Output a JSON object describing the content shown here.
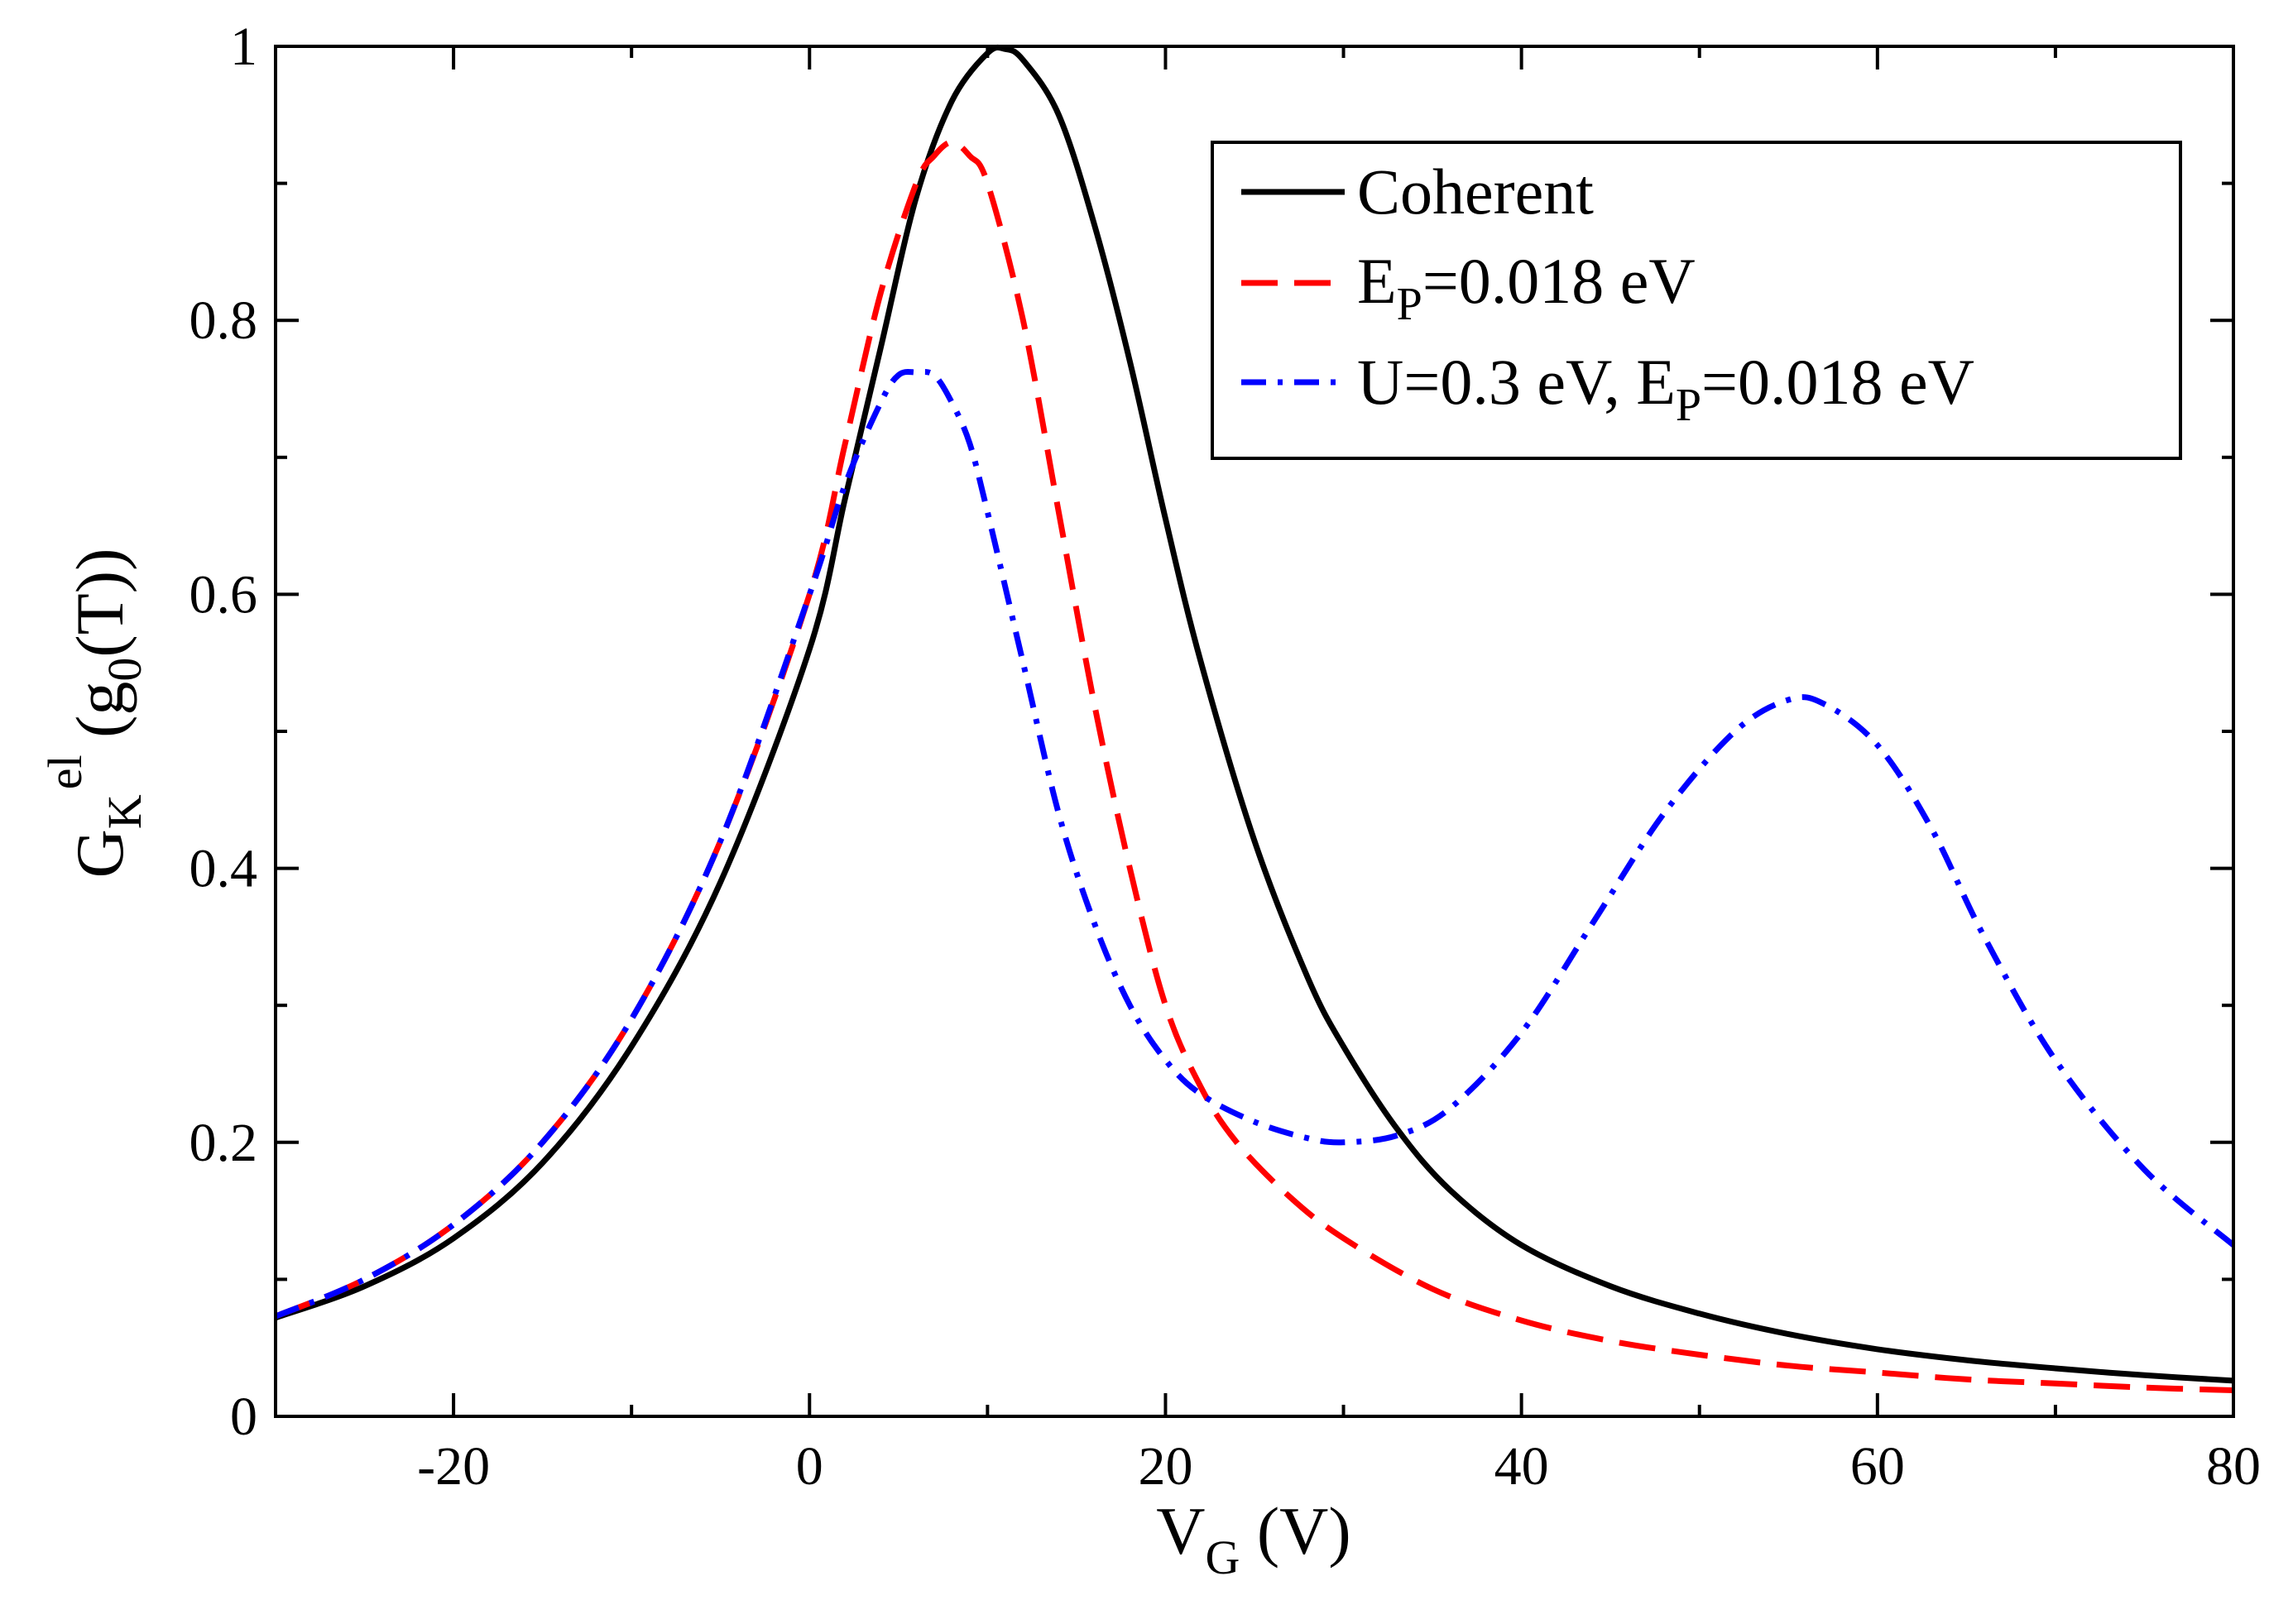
{
  "chart_data": {
    "type": "line",
    "xlabel": {
      "main": "V",
      "sub": "G",
      "rest": " (V)"
    },
    "ylabel": {
      "main": "G",
      "sub": "K",
      "sup": "el",
      "rest1": " (g",
      "sub2": "0",
      "rest2": "(T))"
    },
    "xlim": [
      -30,
      80
    ],
    "ylim": [
      0,
      1
    ],
    "xticks": [
      -20,
      0,
      20,
      40,
      60,
      80
    ],
    "xtick_labels": [
      "-20",
      "0",
      "20",
      "40",
      "60",
      "80"
    ],
    "yticks": [
      0,
      0.2,
      0.4,
      0.6,
      0.8,
      1
    ],
    "ytick_labels": [
      "0",
      "0.2",
      "0.4",
      "0.6",
      "0.8",
      "1"
    ],
    "legend_position": "top-right",
    "series": [
      {
        "name": "Coherent",
        "legend": {
          "pre": "Coherent",
          "sub": "",
          "post": ""
        },
        "color": "#000000",
        "style": "solid",
        "x": [
          -30,
          -25,
          -20,
          -15,
          -10,
          -5,
          0,
          2,
          4,
          6,
          8,
          10,
          11,
          12,
          14,
          16,
          18,
          20,
          22,
          25,
          28,
          30,
          33,
          36,
          40,
          45,
          50,
          55,
          60,
          65,
          70,
          75,
          80
        ],
        "y": [
          0.072,
          0.095,
          0.13,
          0.185,
          0.27,
          0.39,
          0.56,
          0.67,
          0.78,
          0.89,
          0.96,
          0.995,
          0.998,
          0.99,
          0.95,
          0.87,
          0.77,
          0.655,
          0.55,
          0.42,
          0.32,
          0.27,
          0.21,
          0.165,
          0.125,
          0.095,
          0.075,
          0.06,
          0.049,
          0.041,
          0.035,
          0.03,
          0.026
        ]
      },
      {
        "name": "E_P=0.018 eV",
        "legend": {
          "pre": "E",
          "sub": "P",
          "post": "=0.018 eV"
        },
        "color": "#ff0000",
        "style": "dashed",
        "x": [
          -30,
          -25,
          -20,
          -15,
          -10,
          -5,
          0,
          2,
          4,
          6,
          7,
          8,
          9,
          10,
          12,
          14,
          16,
          18,
          20,
          22,
          24,
          27,
          30,
          35,
          40,
          45,
          50,
          55,
          60,
          65,
          70,
          75,
          80
        ],
        "y": [
          0.073,
          0.1,
          0.14,
          0.2,
          0.29,
          0.42,
          0.6,
          0.71,
          0.82,
          0.9,
          0.92,
          0.93,
          0.92,
          0.9,
          0.8,
          0.66,
          0.52,
          0.4,
          0.3,
          0.24,
          0.2,
          0.16,
          0.13,
          0.093,
          0.07,
          0.055,
          0.045,
          0.037,
          0.032,
          0.027,
          0.024,
          0.021,
          0.019
        ]
      },
      {
        "name": "U=0.3 eV, E_P=0.018 eV",
        "legend": {
          "pre": "U=0.3 eV, E",
          "sub": "P",
          "post": "=0.018 eV"
        },
        "color": "#0000ff",
        "style": "dashdot",
        "x": [
          -30,
          -25,
          -20,
          -15,
          -10,
          -5,
          0,
          2,
          4,
          5,
          6,
          7,
          8,
          9,
          10,
          12,
          14,
          16,
          18,
          20,
          22,
          25,
          28,
          30,
          33,
          36,
          40,
          44,
          48,
          52,
          55,
          57,
          60,
          63,
          66,
          70,
          75,
          80
        ],
        "y": [
          0.073,
          0.1,
          0.14,
          0.2,
          0.29,
          0.42,
          0.6,
          0.68,
          0.74,
          0.76,
          0.762,
          0.76,
          0.74,
          0.71,
          0.66,
          0.55,
          0.44,
          0.36,
          0.3,
          0.26,
          0.235,
          0.215,
          0.203,
          0.2,
          0.205,
          0.225,
          0.28,
          0.36,
          0.44,
          0.5,
          0.523,
          0.52,
          0.49,
          0.43,
          0.35,
          0.26,
          0.18,
          0.125
        ]
      }
    ]
  }
}
